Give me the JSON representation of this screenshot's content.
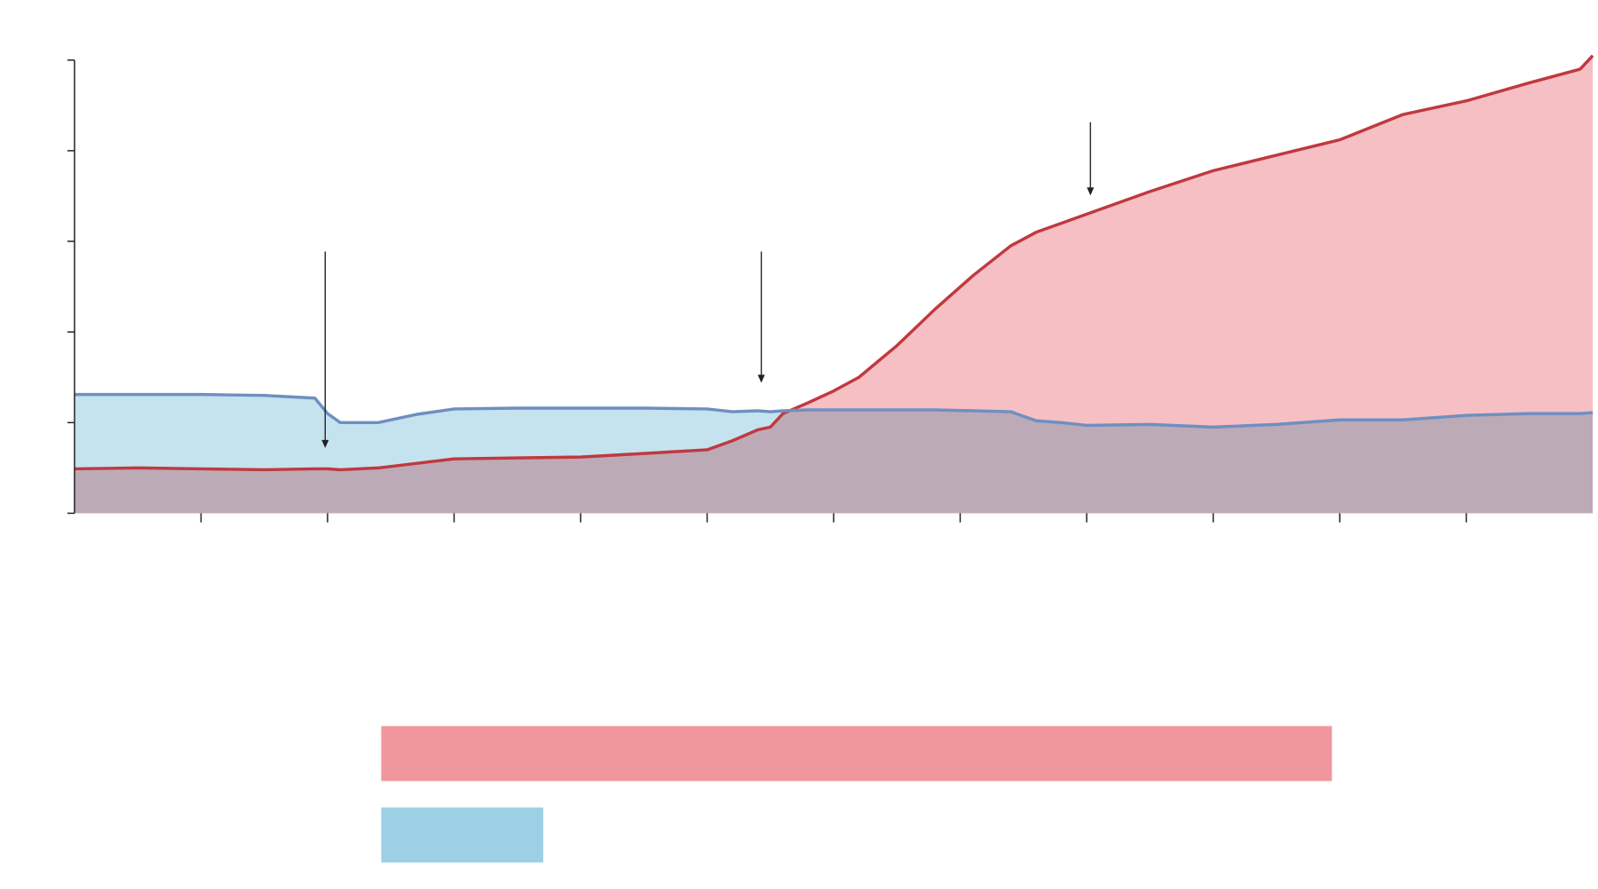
{
  "chart_data": [
    {
      "type": "area",
      "x": [
        0,
        0.5,
        1,
        1.5,
        1.9,
        2.0,
        2.1,
        2.4,
        2.7,
        3,
        3.5,
        4,
        4.5,
        5,
        5.2,
        5.4,
        5.5,
        5.6,
        5.8,
        6,
        6.2,
        6.5,
        6.8,
        7.1,
        7.4,
        7.6,
        7.8,
        8,
        8.5,
        9,
        9.5,
        10,
        10.5,
        11,
        11.5,
        11.9,
        12
      ],
      "series": [
        {
          "color": "#c0393f",
          "fill": "#f5bfc4",
          "values": [
            0.49,
            0.5,
            0.49,
            0.48,
            0.49,
            0.49,
            0.48,
            0.5,
            0.55,
            0.6,
            0.61,
            0.62,
            0.66,
            0.7,
            0.8,
            0.92,
            0.95,
            1.1,
            1.22,
            1.35,
            1.5,
            1.85,
            2.25,
            2.62,
            2.95,
            3.1,
            3.2,
            3.3,
            3.55,
            3.78,
            3.95,
            4.12,
            4.4,
            4.55,
            4.75,
            4.9,
            5.05
          ]
        },
        {
          "color": "#6f8fc0",
          "fill": "#c5e3ef",
          "values": [
            1.31,
            1.31,
            1.31,
            1.3,
            1.27,
            1.1,
            1.0,
            1.0,
            1.09,
            1.15,
            1.16,
            1.16,
            1.16,
            1.15,
            1.12,
            1.13,
            1.12,
            1.13,
            1.14,
            1.14,
            1.14,
            1.14,
            1.14,
            1.13,
            1.12,
            1.02,
            1.0,
            0.97,
            0.98,
            0.95,
            0.98,
            1.03,
            1.03,
            1.08,
            1.1,
            1.1,
            1.11
          ]
        }
      ],
      "xlim": [
        0,
        12
      ],
      "xticks": [
        1,
        2,
        3,
        4,
        5,
        6,
        7,
        8,
        9,
        10,
        11
      ],
      "ylim": [
        0,
        5
      ],
      "yticks": [
        0,
        1,
        2,
        3,
        4,
        5
      ]
    },
    {
      "type": "barh",
      "values": [
        93.3,
        15.9
      ],
      "colors": [
        "#f0979e",
        "#9dd0e4"
      ],
      "xlim": [
        0,
        100
      ]
    }
  ]
}
